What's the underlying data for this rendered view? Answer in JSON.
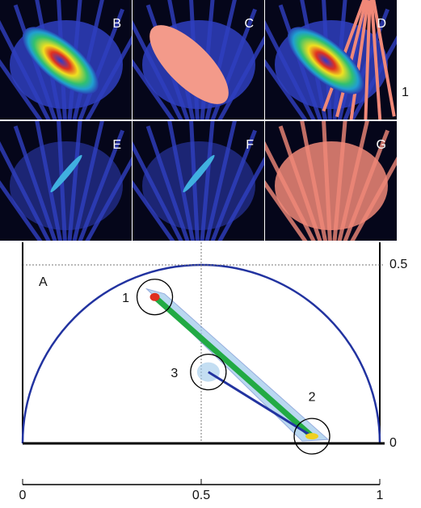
{
  "panels": [
    "B",
    "C",
    "D",
    "E",
    "F",
    "G"
  ],
  "row_label": "1",
  "plot": {
    "label": "A",
    "xlim": [
      0,
      1
    ],
    "xticks": [
      0,
      0.5,
      1
    ],
    "yticks": [
      0,
      0.5
    ],
    "clusters": [
      {
        "label": "1",
        "g": 0.37,
        "s": 0.41
      },
      {
        "label": "2",
        "g": 0.81,
        "s": 0.02
      },
      {
        "label": "3",
        "g": 0.52,
        "s": 0.2
      }
    ]
  }
}
